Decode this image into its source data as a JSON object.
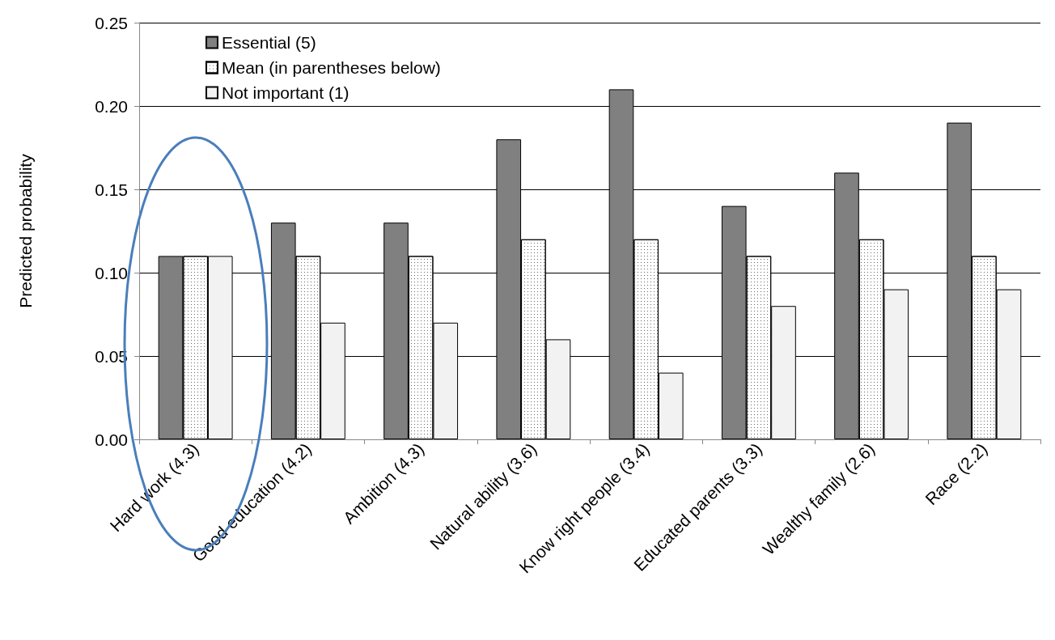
{
  "chart_data": {
    "type": "bar",
    "ylabel": "Predicted probability",
    "categories": [
      "Hard work (4.3)",
      "Good education (4.2)",
      "Ambition (4.3)",
      "Natural ability (3.6)",
      "Know right people (3.4)",
      "Educated parents (3.3)",
      "Wealthy family (2.6)",
      "Race (2.2)"
    ],
    "series": [
      {
        "name": "Essential (5)",
        "color": "#808080",
        "values": [
          0.11,
          0.13,
          0.13,
          0.18,
          0.21,
          0.14,
          0.16,
          0.19
        ]
      },
      {
        "name": "Mean (in parentheses below)",
        "color": "#ffffff",
        "values": [
          0.11,
          0.11,
          0.11,
          0.12,
          0.12,
          0.11,
          0.12,
          0.11
        ]
      },
      {
        "name": "Not important (1)",
        "color": "#f2f2f2",
        "values": [
          0.11,
          0.07,
          0.07,
          0.06,
          0.04,
          0.08,
          0.09,
          0.09
        ]
      }
    ],
    "ylim": [
      0,
      0.25
    ],
    "yticks": [
      {
        "value": 0,
        "label": "0.00"
      },
      0.05,
      {
        "value": 0.1,
        "label": "0.10"
      },
      0.15,
      {
        "value": 0.2,
        "label": "0.20"
      },
      0.25
    ],
    "grid": "y",
    "legend": "top left"
  }
}
